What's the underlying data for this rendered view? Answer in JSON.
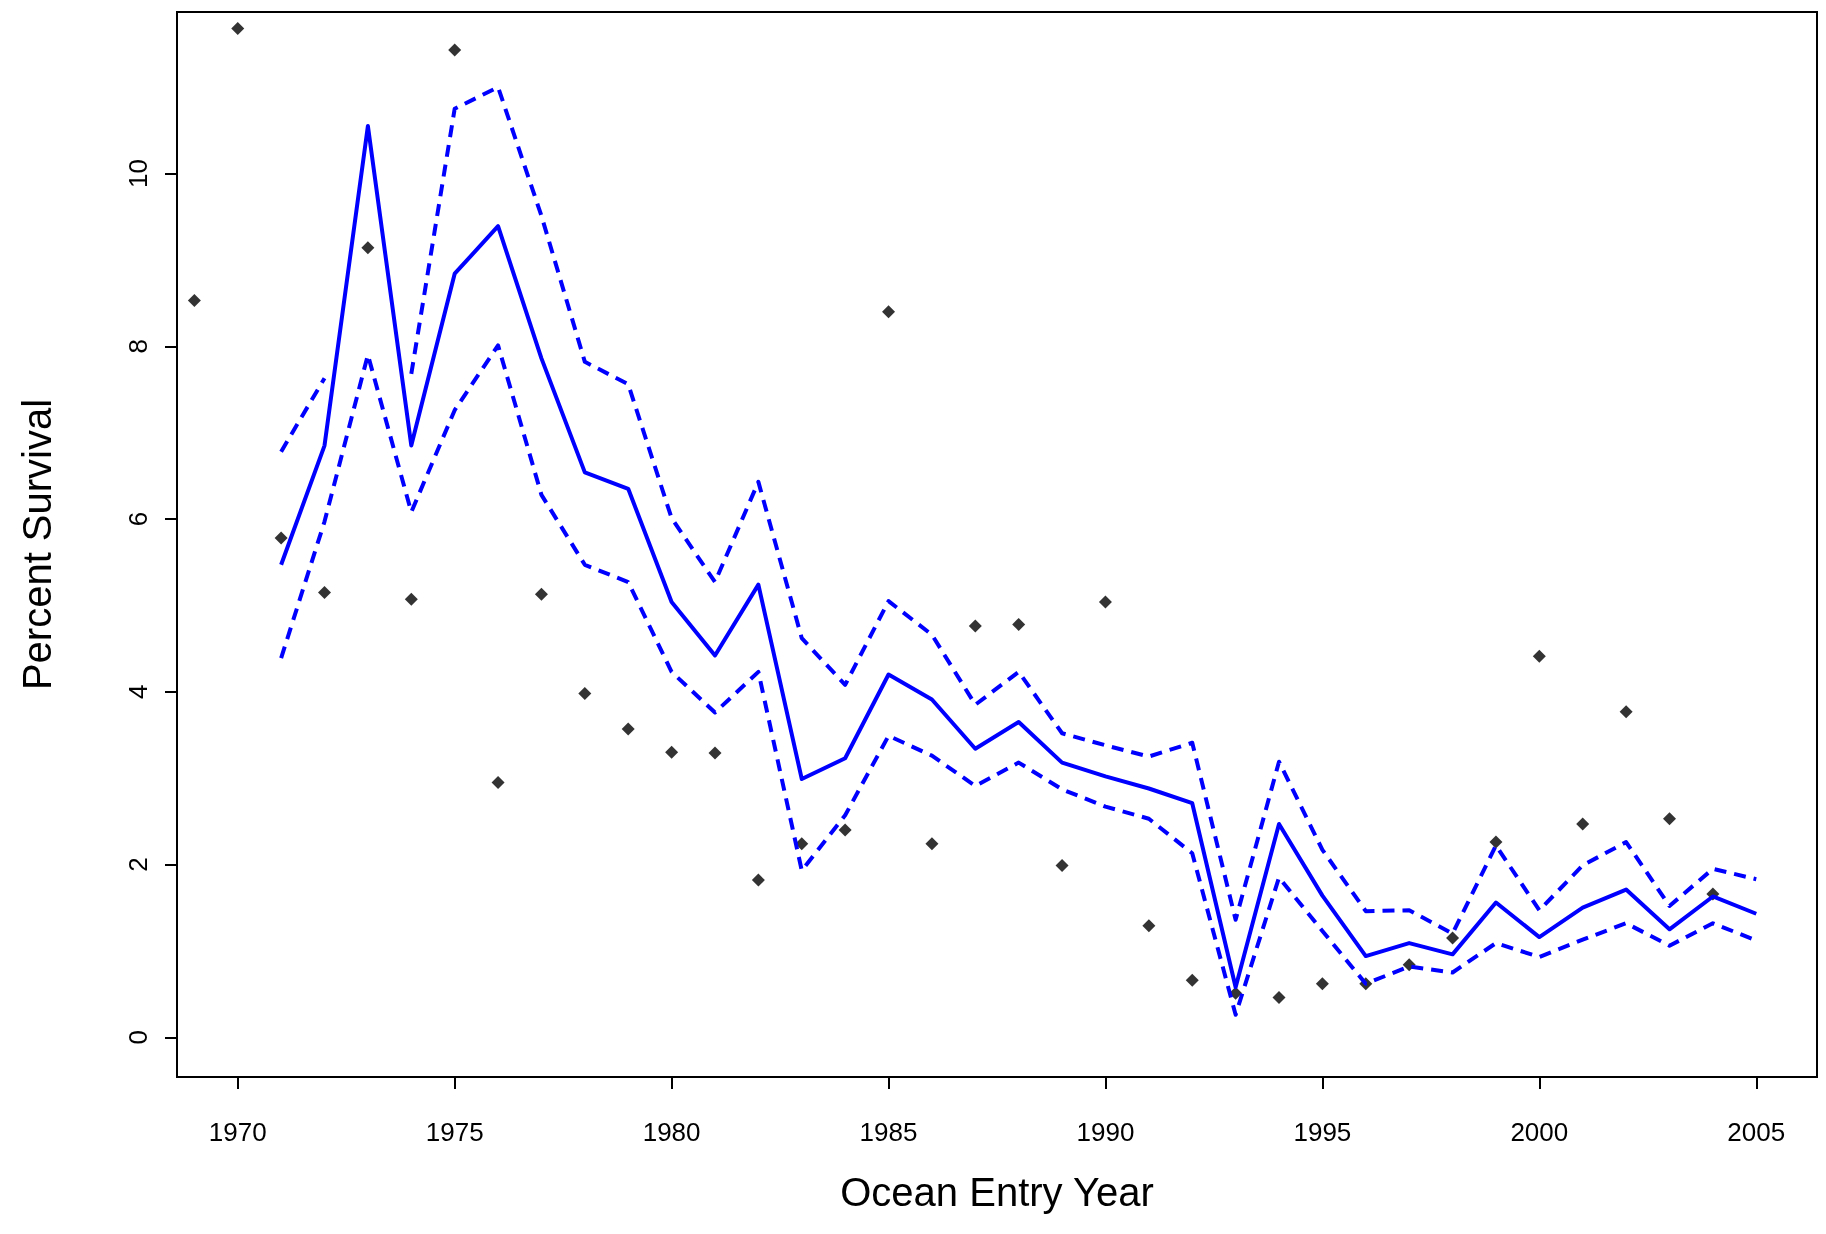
{
  "chart_data": {
    "type": "line",
    "xlabel": "Ocean Entry Year",
    "ylabel": "Percent Survival",
    "xlim": [
      1968.6,
      2006.4
    ],
    "xticks": [
      1970,
      1975,
      1980,
      1985,
      1990,
      1995,
      2000,
      2005
    ],
    "ylim": [
      -0.46,
      11.87
    ],
    "yticks": [
      0,
      2,
      4,
      6,
      8,
      10
    ],
    "grid": false,
    "series": [
      {
        "type": "scatter",
        "color": "#000000",
        "marker": "diamond",
        "x": [
          1969,
          1970,
          1971,
          1972,
          1973,
          1974,
          1975,
          1976,
          1977,
          1978,
          1979,
          1980,
          1981,
          1982,
          1983,
          1984,
          1985,
          1986,
          1987,
          1988,
          1989,
          1990,
          1991,
          1992,
          1993,
          1994,
          1995,
          1996,
          1997,
          1998,
          1999,
          2000,
          2001,
          2002,
          2003,
          2004
        ],
        "values": [
          8.53,
          11.68,
          5.78,
          5.15,
          9.14,
          5.07,
          11.43,
          2.95,
          5.13,
          3.98,
          3.57,
          3.3,
          3.29,
          1.82,
          2.24,
          2.4,
          8.4,
          2.24,
          4.76,
          4.78,
          1.99,
          5.04,
          1.29,
          0.66,
          0.51,
          0.46,
          0.62,
          0.62,
          0.84,
          1.15,
          2.26,
          4.41,
          2.47,
          3.77,
          2.53,
          1.66
        ]
      },
      {
        "color": "#0000ff",
        "marker": "none",
        "line_style": "solid",
        "x": [
          1971,
          1972,
          1973,
          1974,
          1975,
          1976,
          1977,
          1978,
          1979,
          1980,
          1981,
          1982,
          1983,
          1984,
          1985,
          1986,
          1987,
          1988,
          1989,
          1990,
          1991,
          1992,
          1993,
          1994,
          1995,
          1996,
          1997,
          1998,
          1999,
          2000,
          2001,
          2002,
          2003,
          2004,
          2005
        ],
        "values": [
          5.47,
          6.85,
          10.55,
          6.85,
          8.84,
          9.39,
          7.86,
          6.54,
          6.35,
          5.04,
          4.42,
          5.24,
          2.99,
          3.23,
          4.2,
          3.91,
          3.34,
          3.65,
          3.18,
          3.02,
          2.88,
          2.71,
          0.58,
          2.47,
          1.64,
          0.94,
          1.09,
          0.96,
          1.56,
          1.16,
          1.5,
          1.71,
          1.25,
          1.63,
          1.43
        ]
      },
      {
        "type": "line",
        "color": "#0000ff",
        "marker": "none",
        "line_style": "dashed",
        "x": [
          1971,
          1972,
          1973,
          1974,
          1975,
          1976,
          1977,
          1978,
          1979,
          1980,
          1981,
          1982,
          1983,
          1984,
          1985,
          1986,
          1987,
          1988,
          1989,
          1990,
          1991,
          1992,
          1993,
          1994,
          1995,
          1996,
          1997,
          1998,
          1999,
          2000,
          2001,
          2002,
          2003,
          2004,
          2005
        ],
        "values": [
          6.78,
          7.63,
          null,
          7.68,
          10.75,
          11.0,
          9.51,
          7.82,
          7.56,
          6.01,
          5.27,
          6.43,
          4.62,
          4.08,
          5.05,
          4.66,
          3.85,
          4.23,
          3.52,
          3.38,
          3.25,
          3.41,
          1.36,
          3.19,
          2.17,
          1.46,
          1.47,
          1.2,
          2.22,
          1.47,
          1.99,
          2.26,
          1.52,
          1.95,
          1.83
        ]
      },
      {
        "type": "line",
        "color": "#0000ff",
        "marker": "none",
        "line_style": "dashed",
        "x": [
          1971,
          1972,
          1973,
          1974,
          1975,
          1976,
          1977,
          1978,
          1979,
          1980,
          1981,
          1982,
          1983,
          1984,
          1985,
          1986,
          1987,
          1988,
          1989,
          1990,
          1991,
          1992,
          1993,
          1994,
          1995,
          1996,
          1997,
          1998,
          1999,
          2000,
          2001,
          2002,
          2003,
          2004,
          2005
        ],
        "values": [
          4.39,
          5.97,
          7.9,
          6.08,
          7.26,
          8.01,
          6.28,
          5.47,
          5.27,
          4.23,
          3.76,
          4.23,
          1.93,
          2.57,
          3.49,
          3.26,
          2.91,
          3.18,
          2.87,
          2.67,
          2.53,
          2.13,
          0.26,
          1.85,
          1.23,
          0.62,
          0.82,
          0.75,
          1.09,
          0.93,
          1.13,
          1.32,
          1.06,
          1.32,
          1.12
        ]
      }
    ]
  }
}
